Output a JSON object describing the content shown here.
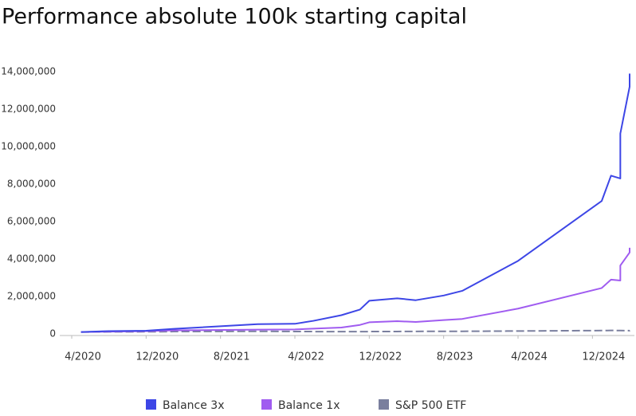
{
  "chart_data": {
    "type": "line",
    "title": "Performance absolute 100k starting capital",
    "x": [
      "5/2020",
      "8/2020",
      "12/2020",
      "3/2021",
      "12/2021",
      "4/2022",
      "6/2022",
      "9/2022",
      "11/2022",
      "12/2022",
      "3/2023",
      "5/2023",
      "8/2023",
      "10/2023",
      "4/2024",
      "1/2025",
      "2/2025",
      "3/2025",
      "3/2025",
      "3/2025",
      "3/2025",
      "4/2025",
      "4/2025"
    ],
    "series": [
      {
        "name": "Balance 3x",
        "color": "#3d46e6",
        "values": [
          100000,
          150000,
          170000,
          270000,
          520000,
          540000,
          700000,
          1000000,
          1300000,
          1770000,
          1900000,
          1800000,
          2050000,
          2300000,
          3900000,
          7100000,
          8450000,
          8300000,
          10000000,
          9300000,
          10700000,
          13200000,
          13900000
        ]
      },
      {
        "name": "Balance 1x",
        "color": "#a05cf0",
        "values": [
          100000,
          120000,
          150000,
          190000,
          230000,
          240000,
          280000,
          340000,
          480000,
          620000,
          680000,
          640000,
          740000,
          800000,
          1350000,
          2450000,
          2900000,
          2850000,
          3400000,
          3200000,
          3650000,
          4350000,
          4600000
        ]
      },
      {
        "name": "S&P 500 ETF",
        "color": "#7a7f9e",
        "values": [
          100000,
          110000,
          115000,
          125000,
          140000,
          130000,
          125000,
          120000,
          120000,
          125000,
          130000,
          135000,
          140000,
          140000,
          155000,
          180000,
          185000,
          180000,
          180000,
          180000,
          180000,
          175000,
          180000
        ]
      }
    ],
    "xlim": [
      "4/2020",
      "4/2025"
    ],
    "xticks": [
      "4/2020",
      "12/2020",
      "8/2021",
      "4/2022",
      "12/2022",
      "8/2023",
      "4/2024",
      "12/2024"
    ],
    "ylim": [
      0,
      14000000
    ],
    "yticks": [
      0,
      {
        "value": 2000000,
        "label": "2,000,000"
      },
      {
        "value": 4000000,
        "label": "4,000,000"
      },
      {
        "value": 6000000,
        "label": "6,000,000"
      },
      {
        "value": 8000000,
        "label": "8,000,000"
      },
      {
        "value": 10000000,
        "label": "10,000,000"
      },
      {
        "value": 12000000,
        "label": "12,000,000"
      },
      {
        "value": 14000000,
        "label": "14,000,000"
      }
    ],
    "grid": false,
    "legend": "bottom"
  }
}
